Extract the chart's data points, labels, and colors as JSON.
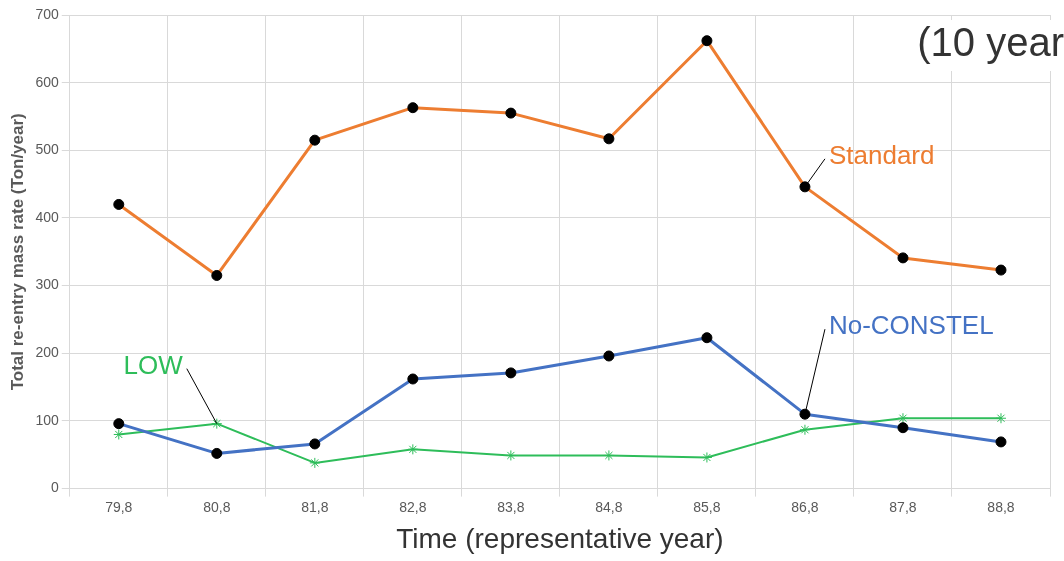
{
  "chart_data": {
    "type": "line",
    "xlabel": "Time (representative year)",
    "ylabel": "Total re-entry mass rate (Ton/year)",
    "categories": [
      "79,8",
      "80,8",
      "81,8",
      "82,8",
      "83,8",
      "84,8",
      "85,8",
      "86,8",
      "87,8",
      "88,8"
    ],
    "series": [
      {
        "name": "Standard",
        "color": "#ed7d31",
        "marker": "circle",
        "values": [
          420,
          315,
          515,
          563,
          555,
          517,
          662,
          446,
          341,
          323
        ]
      },
      {
        "name": "No-CONSTEL",
        "color": "#4472c4",
        "marker": "circle",
        "values": [
          96,
          52,
          66,
          162,
          171,
          196,
          223,
          110,
          90,
          69
        ]
      },
      {
        "name": "LOW",
        "color": "#2ebd5a",
        "marker": "cross",
        "values": [
          80,
          96,
          38,
          58,
          49,
          49,
          46,
          87,
          104,
          104
        ]
      }
    ],
    "ylim": [
      0,
      700
    ],
    "yticks": [
      0,
      100,
      200,
      300,
      400,
      500,
      600,
      700
    ],
    "grid": true,
    "annotations": [
      "(10 year"
    ]
  }
}
